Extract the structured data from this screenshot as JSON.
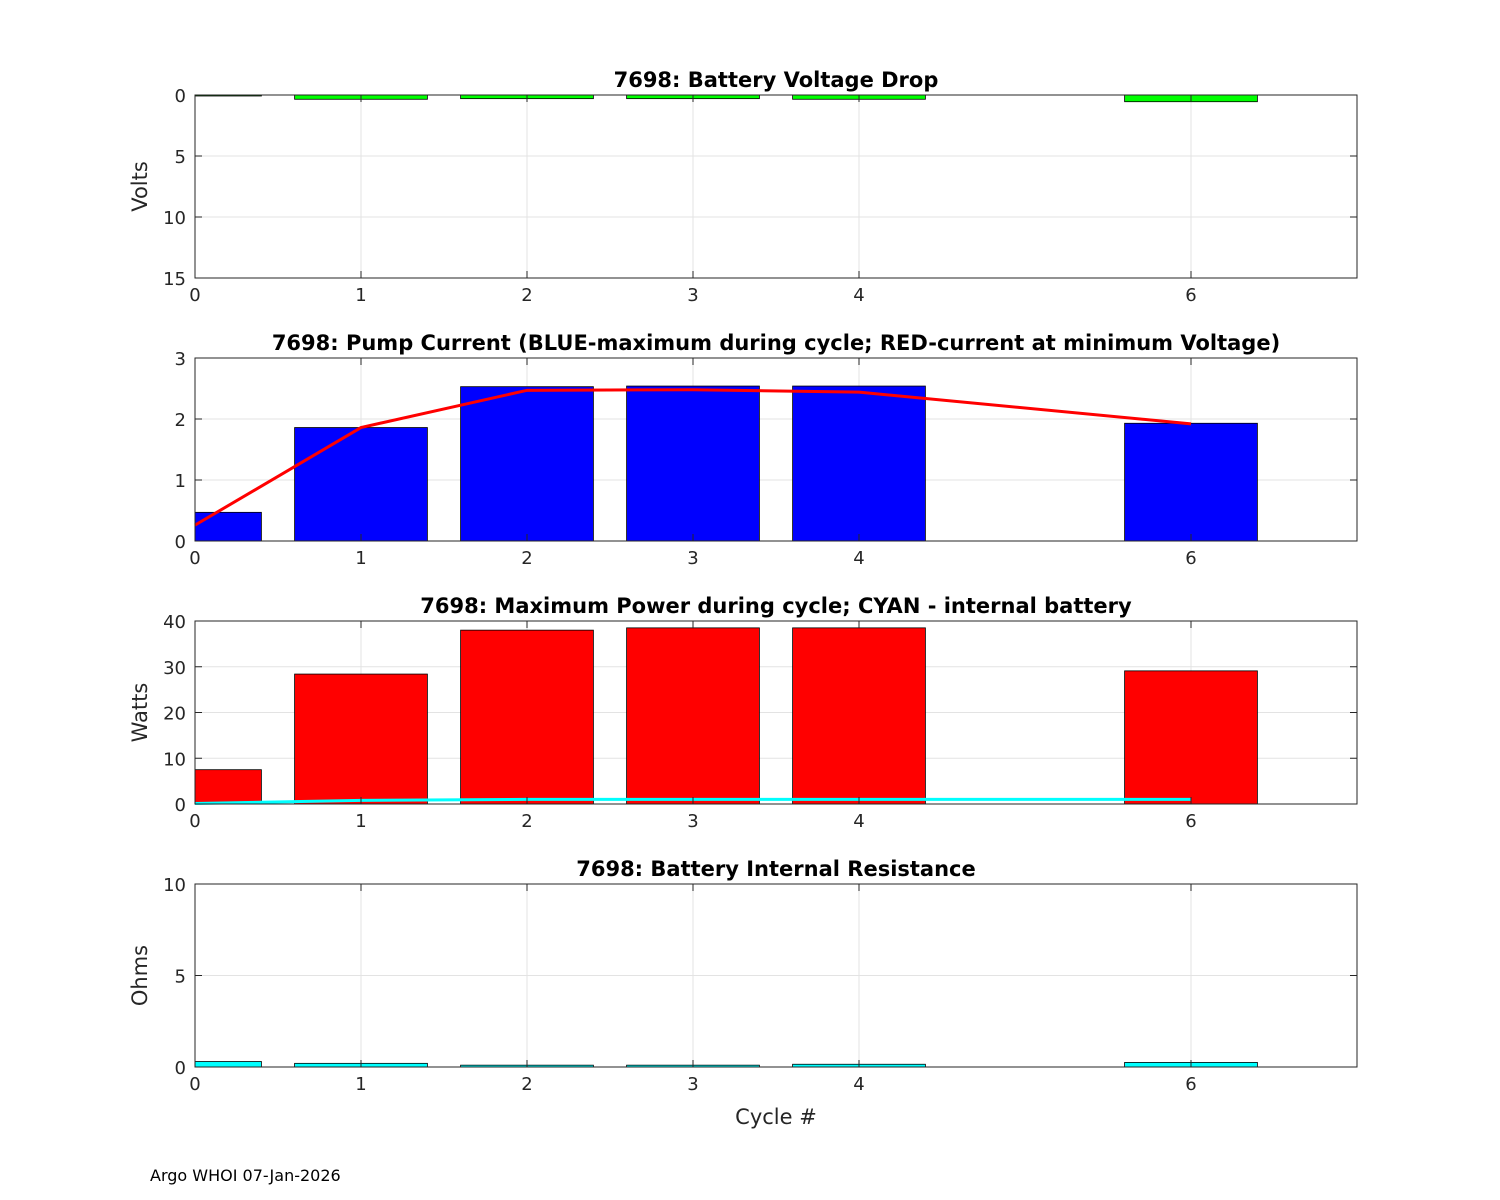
{
  "footer": "Argo WHOI 07-Jan-2026",
  "chart_data": [
    {
      "type": "bar",
      "title": "7698: Battery Voltage Drop",
      "xlabel": "",
      "ylabel": "Volts",
      "xlim": [
        0,
        7
      ],
      "ylim": [
        0,
        15
      ],
      "y_reversed": true,
      "xticks": [
        0,
        1,
        2,
        3,
        4,
        6
      ],
      "yticks": [
        0,
        5,
        10,
        15
      ],
      "grid": true,
      "bar_width": 0.8,
      "x": [
        0,
        1,
        2,
        3,
        4,
        6
      ],
      "values": [
        0.05,
        0.35,
        0.3,
        0.3,
        0.35,
        0.55
      ],
      "bar_color": "#00ff00"
    },
    {
      "type": "bar",
      "title": "7698: Pump Current (BLUE-maximum during cycle; RED-current at minimum Voltage)",
      "xlabel": "",
      "ylabel": "",
      "xlim": [
        0,
        7
      ],
      "ylim": [
        0,
        3
      ],
      "xticks": [
        0,
        1,
        2,
        3,
        4,
        6
      ],
      "yticks": [
        0,
        1,
        2,
        3
      ],
      "grid": true,
      "bar_width": 0.8,
      "x": [
        0,
        1,
        2,
        3,
        4,
        6
      ],
      "values": [
        0.47,
        1.86,
        2.53,
        2.54,
        2.54,
        1.93
      ],
      "bar_color": "#0000ff",
      "line": {
        "x": [
          0,
          1,
          2,
          3,
          4,
          6
        ],
        "values": [
          0.26,
          1.86,
          2.47,
          2.48,
          2.44,
          1.92
        ],
        "color": "#ff0000"
      }
    },
    {
      "type": "bar",
      "title": "7698: Maximum Power during cycle; CYAN - internal battery",
      "xlabel": "",
      "ylabel": "Watts",
      "xlim": [
        0,
        7
      ],
      "ylim": [
        0,
        40
      ],
      "xticks": [
        0,
        1,
        2,
        3,
        4,
        6
      ],
      "yticks": [
        0,
        10,
        20,
        30,
        40
      ],
      "grid": true,
      "bar_width": 0.8,
      "x": [
        0,
        1,
        2,
        3,
        4,
        6
      ],
      "values": [
        7.5,
        28.4,
        38.0,
        38.5,
        38.5,
        29.1
      ],
      "bar_color": "#ff0000",
      "line": {
        "x": [
          0,
          1,
          2,
          3,
          4,
          6
        ],
        "values": [
          0.1,
          0.8,
          1.0,
          1.0,
          1.0,
          1.0
        ],
        "color": "#00ffff"
      }
    },
    {
      "type": "bar",
      "title": "7698: Battery Internal Resistance",
      "xlabel": "Cycle #",
      "ylabel": "Ohms",
      "xlim": [
        0,
        7
      ],
      "ylim": [
        0,
        10
      ],
      "xticks": [
        0,
        1,
        2,
        3,
        4,
        6
      ],
      "yticks": [
        0,
        5,
        10
      ],
      "grid": true,
      "bar_width": 0.8,
      "x": [
        0,
        1,
        2,
        3,
        4,
        6
      ],
      "values": [
        0.3,
        0.2,
        0.1,
        0.1,
        0.15,
        0.25
      ],
      "bar_color": "#00ffff"
    }
  ]
}
